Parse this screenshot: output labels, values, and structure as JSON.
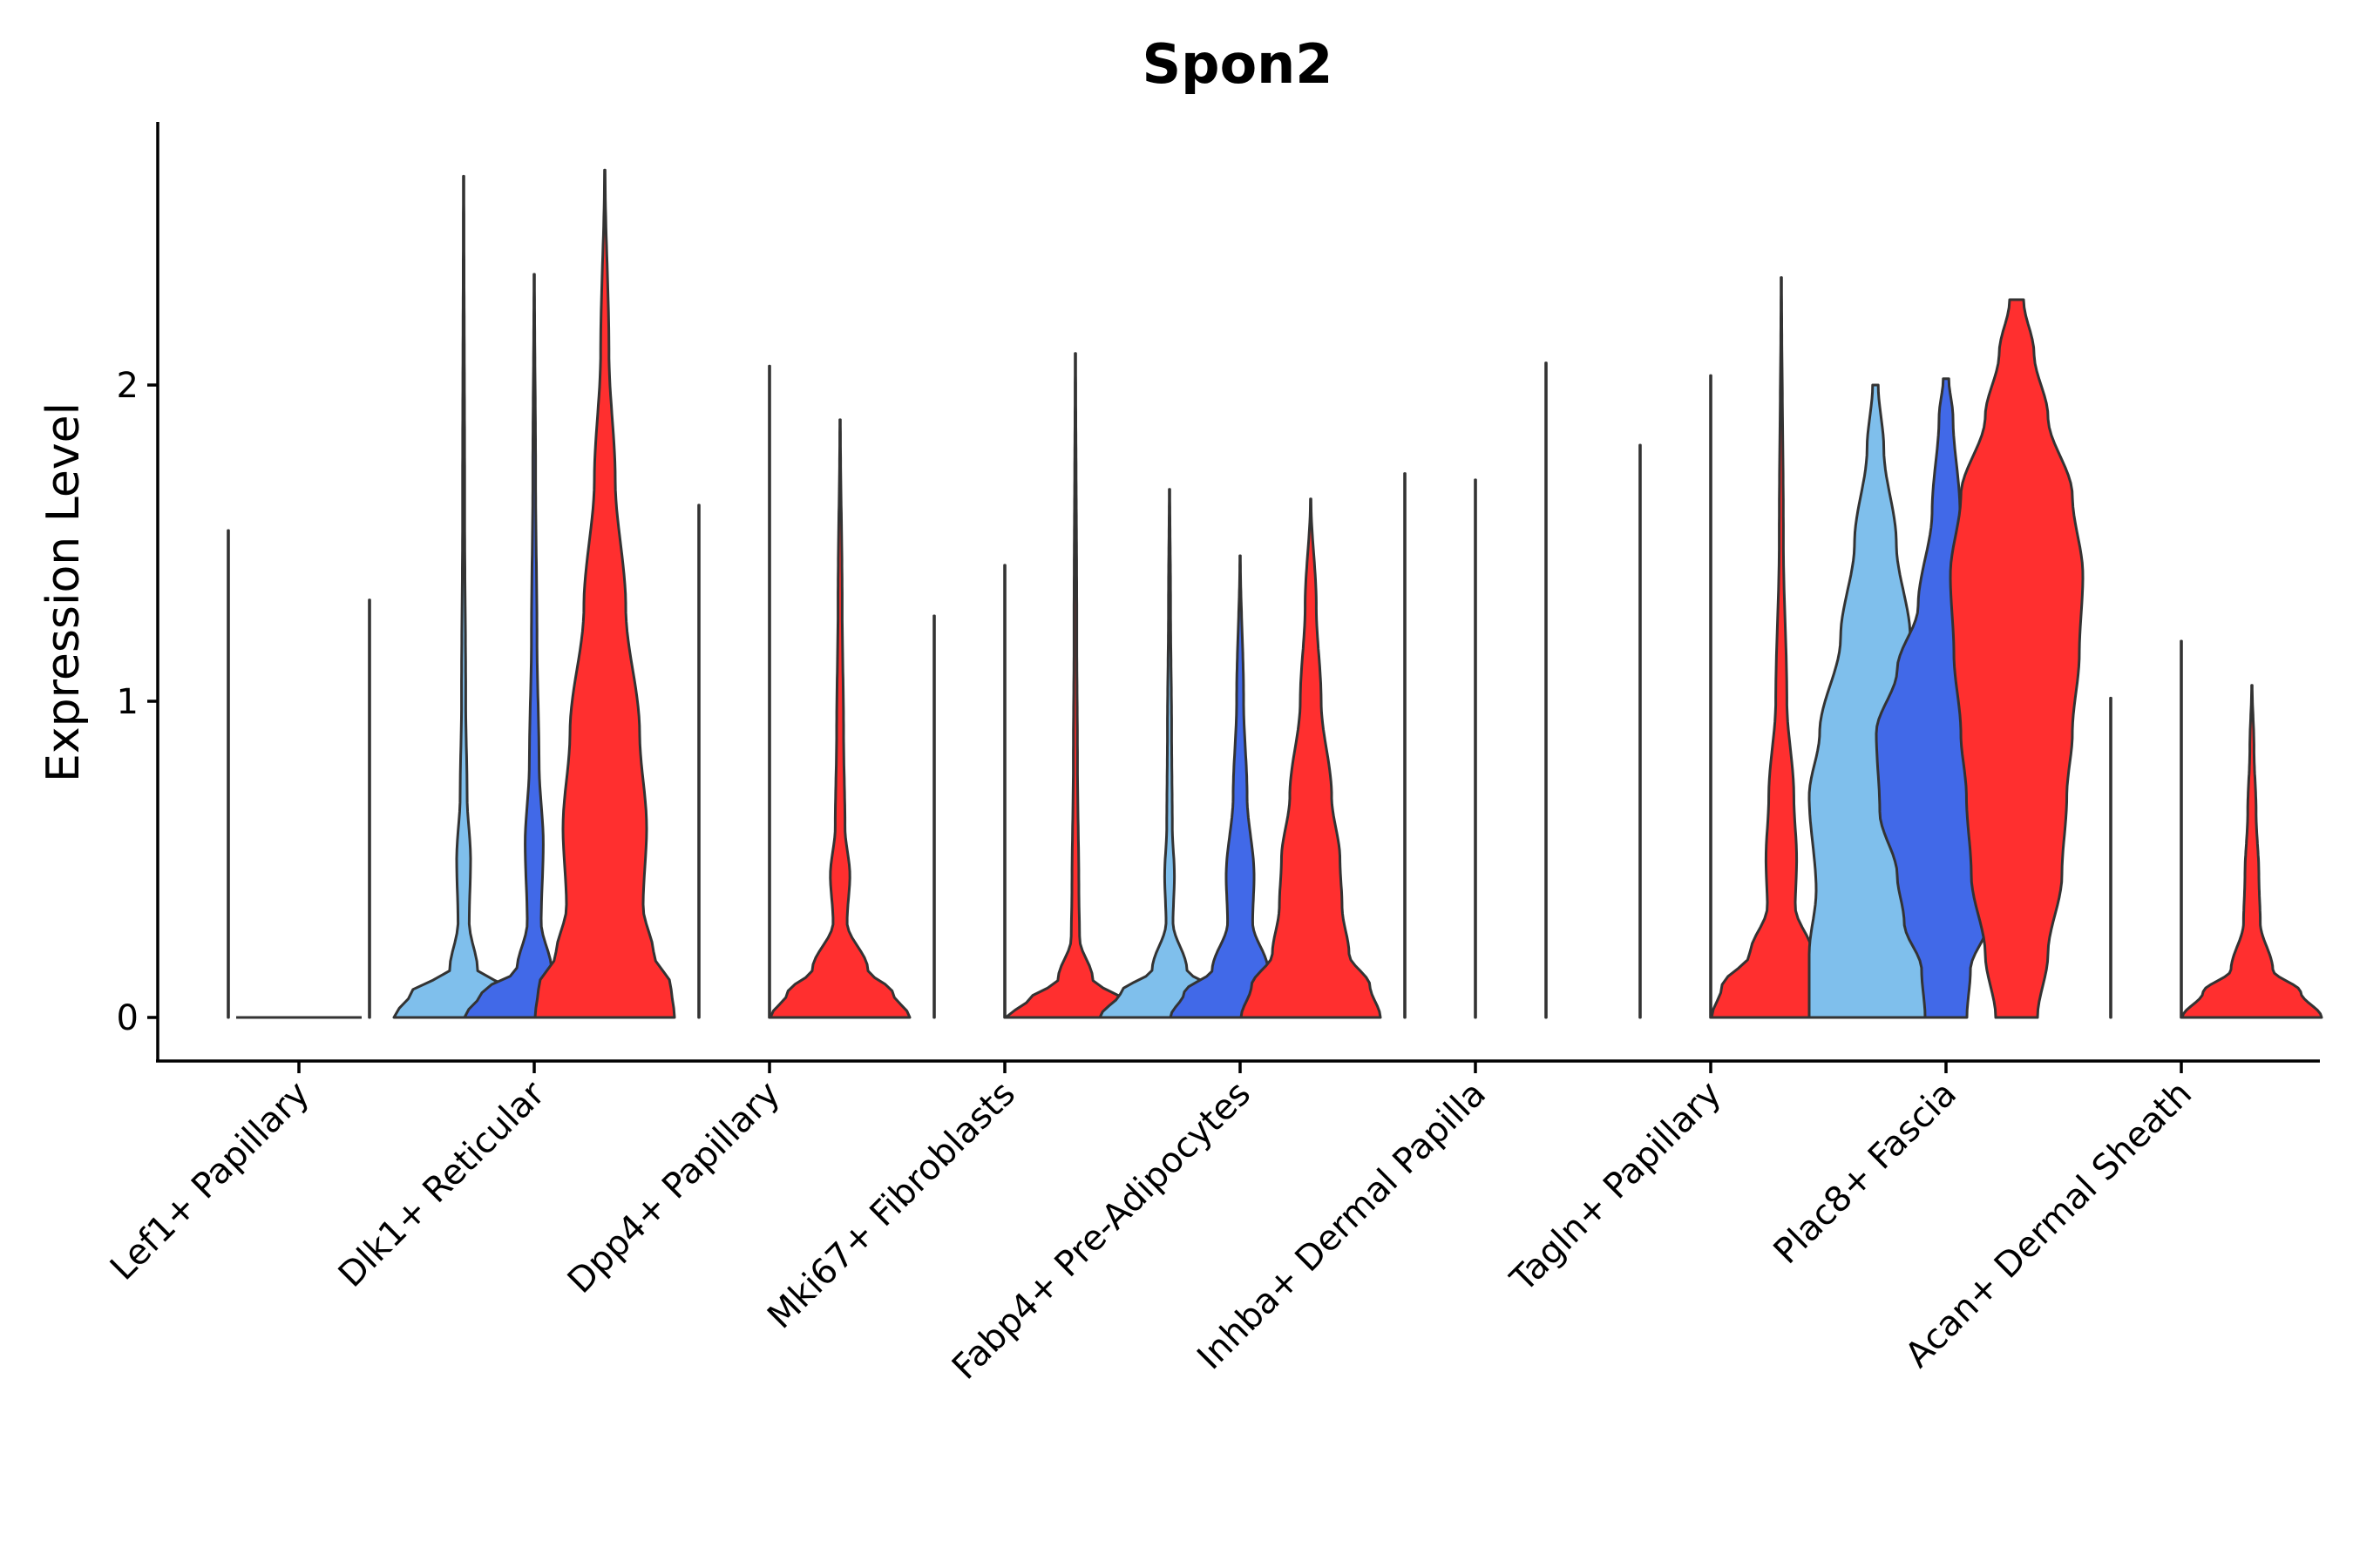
{
  "chart_data": {
    "type": "violin",
    "title": "Spon2",
    "xlabel": "",
    "ylabel": "Expression Level",
    "ylim": [
      -0.13,
      2.8
    ],
    "yticks": [
      0,
      1,
      2
    ],
    "categories": [
      "Lef1+ Papillary",
      "Dlk1+ Reticular",
      "Dpp4+ Papillary",
      "Mki67+ Fibroblasts",
      "Fabp4+ Pre-Adipocytes",
      "Inhba+ Dermal Papilla",
      "Tagln+ Papillary",
      "Plac8+ Fascia",
      "Acan+ Dermal Sheath"
    ],
    "groups": [
      {
        "name": "group-1",
        "color": "#7fbfec"
      },
      {
        "name": "group-2",
        "color": "#4169e8"
      },
      {
        "name": "group-3",
        "color": "#ff2f2f"
      }
    ],
    "violins": [
      [
        {
          "max": 1.54,
          "profile": [
            [
              0,
              0.004
            ],
            [
              0.05,
              0.002
            ],
            [
              0.15,
              0.002
            ],
            [
              1.54,
              0.002
            ]
          ]
        },
        {
          "max": 0,
          "profile": [
            [
              0,
              0.004
            ]
          ]
        },
        {
          "max": 1.32,
          "profile": [
            [
              0,
              0.004
            ],
            [
              0.05,
              0.002
            ],
            [
              0.15,
              0.002
            ],
            [
              1.32,
              0.002
            ]
          ]
        }
      ],
      [
        {
          "max": 2.66,
          "profile": [
            [
              0,
              1
            ],
            [
              0.08,
              0.75
            ],
            [
              0.15,
              0.2
            ],
            [
              0.3,
              0.08
            ],
            [
              0.5,
              0.1
            ],
            [
              0.7,
              0.05
            ],
            [
              1.0,
              0.03
            ],
            [
              1.6,
              0.015
            ],
            [
              2.66,
              0.004
            ]
          ]
        },
        {
          "max": 2.35,
          "profile": [
            [
              0,
              1
            ],
            [
              0.08,
              0.75
            ],
            [
              0.15,
              0.25
            ],
            [
              0.3,
              0.1
            ],
            [
              0.55,
              0.13
            ],
            [
              0.8,
              0.07
            ],
            [
              1.2,
              0.04
            ],
            [
              1.7,
              0.02
            ],
            [
              2.35,
              0.004
            ]
          ]
        },
        {
          "max": 2.68,
          "profile": [
            [
              0,
              1
            ],
            [
              0.1,
              0.95
            ],
            [
              0.2,
              0.7
            ],
            [
              0.35,
              0.55
            ],
            [
              0.6,
              0.6
            ],
            [
              0.9,
              0.5
            ],
            [
              1.3,
              0.3
            ],
            [
              1.7,
              0.15
            ],
            [
              2.1,
              0.06
            ],
            [
              2.68,
              0.004
            ]
          ]
        }
      ],
      [
        {
          "max": 1.62,
          "profile": [
            [
              0,
              0.004
            ],
            [
              0.05,
              0.002
            ],
            [
              0.15,
              0.002
            ],
            [
              1.62,
              0.002
            ]
          ]
        },
        {
          "max": 2.06,
          "profile": [
            [
              0,
              0.004
            ],
            [
              0.05,
              0.002
            ],
            [
              0.15,
              0.002
            ],
            [
              2.06,
              0.002
            ]
          ]
        },
        {
          "max": 1.89,
          "profile": [
            [
              0,
              1
            ],
            [
              0.08,
              0.75
            ],
            [
              0.15,
              0.4
            ],
            [
              0.3,
              0.1
            ],
            [
              0.45,
              0.14
            ],
            [
              0.6,
              0.07
            ],
            [
              0.9,
              0.05
            ],
            [
              1.3,
              0.03
            ],
            [
              1.89,
              0.004
            ]
          ]
        }
      ],
      [
        {
          "max": 1.27,
          "profile": [
            [
              0,
              0.004
            ],
            [
              0.05,
              0.002
            ],
            [
              0.15,
              0.002
            ],
            [
              1.27,
              0.002
            ]
          ]
        },
        {
          "max": 1.43,
          "profile": [
            [
              0,
              0.004
            ],
            [
              0.05,
              0.002
            ],
            [
              0.15,
              0.002
            ],
            [
              1.43,
              0.002
            ]
          ]
        },
        {
          "max": 2.1,
          "profile": [
            [
              0,
              1
            ],
            [
              0.05,
              0.7
            ],
            [
              0.12,
              0.25
            ],
            [
              0.25,
              0.06
            ],
            [
              0.4,
              0.05
            ],
            [
              0.8,
              0.03
            ],
            [
              1.2,
              0.02
            ],
            [
              2.1,
              0.004
            ]
          ]
        }
      ],
      [
        {
          "max": 1.67,
          "profile": [
            [
              0,
              1
            ],
            [
              0.08,
              0.7
            ],
            [
              0.15,
              0.25
            ],
            [
              0.3,
              0.05
            ],
            [
              0.45,
              0.07
            ],
            [
              0.6,
              0.04
            ],
            [
              0.9,
              0.03
            ],
            [
              1.3,
              0.015
            ],
            [
              1.67,
              0.004
            ]
          ]
        },
        {
          "max": 1.46,
          "profile": [
            [
              0,
              1
            ],
            [
              0.08,
              0.8
            ],
            [
              0.15,
              0.4
            ],
            [
              0.3,
              0.18
            ],
            [
              0.45,
              0.2
            ],
            [
              0.7,
              0.1
            ],
            [
              1.0,
              0.05
            ],
            [
              1.46,
              0.004
            ]
          ]
        },
        {
          "max": 1.64,
          "profile": [
            [
              0,
              1
            ],
            [
              0.1,
              0.85
            ],
            [
              0.2,
              0.55
            ],
            [
              0.35,
              0.45
            ],
            [
              0.5,
              0.42
            ],
            [
              0.7,
              0.3
            ],
            [
              1.0,
              0.15
            ],
            [
              1.3,
              0.08
            ],
            [
              1.64,
              0.004
            ]
          ]
        }
      ],
      [
        {
          "max": 1.72,
          "profile": [
            [
              0,
              0.004
            ],
            [
              0.05,
              0.002
            ],
            [
              0.15,
              0.002
            ],
            [
              1.72,
              0.002
            ]
          ]
        },
        {
          "max": 1.7,
          "profile": [
            [
              0,
              0.004
            ],
            [
              0.05,
              0.002
            ],
            [
              0.15,
              0.002
            ],
            [
              1.7,
              0.002
            ]
          ]
        },
        {
          "max": 2.07,
          "profile": [
            [
              0,
              0.004
            ],
            [
              0.05,
              0.002
            ],
            [
              0.15,
              0.002
            ],
            [
              2.07,
              0.002
            ]
          ]
        }
      ],
      [
        {
          "max": 1.81,
          "profile": [
            [
              0,
              0.004
            ],
            [
              0.05,
              0.002
            ],
            [
              0.15,
              0.002
            ],
            [
              1.81,
              0.002
            ]
          ]
        },
        {
          "max": 2.03,
          "profile": [
            [
              0,
              0.004
            ],
            [
              0.05,
              0.002
            ],
            [
              0.15,
              0.002
            ],
            [
              2.03,
              0.002
            ]
          ]
        },
        {
          "max": 2.34,
          "profile": [
            [
              0,
              1
            ],
            [
              0.1,
              0.85
            ],
            [
              0.2,
              0.45
            ],
            [
              0.35,
              0.2
            ],
            [
              0.5,
              0.22
            ],
            [
              0.7,
              0.18
            ],
            [
              1.0,
              0.08
            ],
            [
              1.5,
              0.03
            ],
            [
              2.34,
              0.004
            ]
          ]
        }
      ],
      [
        {
          "max": 2.0,
          "profile": [
            [
              0,
              0.95
            ],
            [
              0.2,
              0.95
            ],
            [
              0.4,
              0.85
            ],
            [
              0.7,
              0.95
            ],
            [
              0.9,
              0.8
            ],
            [
              1.2,
              0.5
            ],
            [
              1.5,
              0.3
            ],
            [
              1.8,
              0.12
            ],
            [
              2.0,
              0.04
            ]
          ]
        },
        {
          "max": 2.02,
          "profile": [
            [
              0,
              0.3
            ],
            [
              0.15,
              0.35
            ],
            [
              0.3,
              0.6
            ],
            [
              0.45,
              0.7
            ],
            [
              0.65,
              0.95
            ],
            [
              0.9,
              1.0
            ],
            [
              1.1,
              0.7
            ],
            [
              1.3,
              0.4
            ],
            [
              1.6,
              0.2
            ],
            [
              1.9,
              0.1
            ],
            [
              2.02,
              0.04
            ]
          ]
        },
        {
          "max": 2.27,
          "profile": [
            [
              0,
              0.3
            ],
            [
              0.2,
              0.45
            ],
            [
              0.45,
              0.65
            ],
            [
              0.7,
              0.72
            ],
            [
              0.9,
              0.8
            ],
            [
              1.15,
              0.9
            ],
            [
              1.4,
              0.95
            ],
            [
              1.65,
              0.8
            ],
            [
              1.9,
              0.45
            ],
            [
              2.1,
              0.25
            ],
            [
              2.27,
              0.1
            ]
          ]
        }
      ],
      [
        {
          "max": 1.01,
          "profile": [
            [
              0,
              0.004
            ],
            [
              0.05,
              0.002
            ],
            [
              0.15,
              0.002
            ],
            [
              1.01,
              0.002
            ]
          ]
        },
        {
          "max": 1.19,
          "profile": [
            [
              0,
              0.004
            ],
            [
              0.05,
              0.002
            ],
            [
              0.15,
              0.002
            ],
            [
              1.19,
              0.002
            ]
          ]
        },
        {
          "max": 1.05,
          "profile": [
            [
              0,
              1
            ],
            [
              0.08,
              0.7
            ],
            [
              0.15,
              0.3
            ],
            [
              0.3,
              0.12
            ],
            [
              0.45,
              0.1
            ],
            [
              0.65,
              0.06
            ],
            [
              0.85,
              0.03
            ],
            [
              1.05,
              0.004
            ]
          ]
        }
      ]
    ]
  }
}
